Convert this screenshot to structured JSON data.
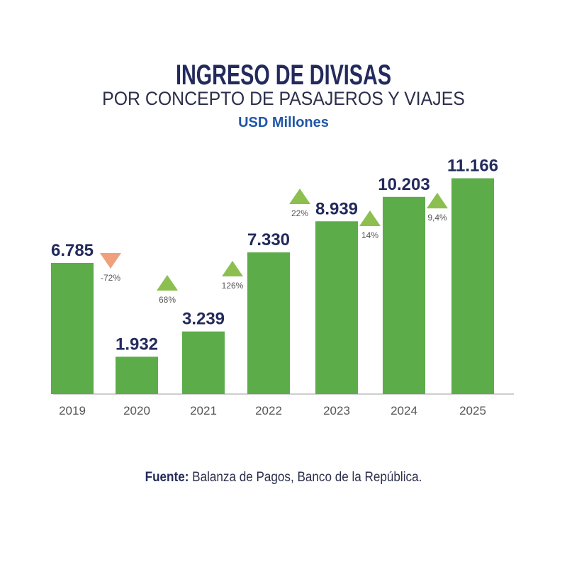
{
  "header": {
    "title": "INGRESO DE DIVISAS",
    "subtitle": "POR CONCEPTO DE PASAJEROS Y VIAJES",
    "unit": "USD Millones"
  },
  "footer": {
    "source_label": "Fuente:",
    "source_text": "Balanza de Pagos, Banco de la República."
  },
  "chart_data": {
    "type": "bar",
    "title": "INGRESO DE DIVISAS POR CONCEPTO DE PASAJEROS Y VIAJES",
    "ylabel": "USD Millones",
    "xlabel": "",
    "categories": [
      "2019",
      "2020",
      "2021",
      "2022",
      "2023",
      "2024",
      "2025"
    ],
    "values": [
      6785,
      1932,
      3239,
      7330,
      8939,
      10203,
      11166
    ],
    "value_labels": [
      "6.785",
      "1.932",
      "3.239",
      "7.330",
      "8.939",
      "10.203",
      "11.166"
    ],
    "changes": [
      {
        "label": "-72%",
        "direction": "down"
      },
      {
        "label": "68%",
        "direction": "up"
      },
      {
        "label": "126%",
        "direction": "up"
      },
      {
        "label": "22%",
        "direction": "up"
      },
      {
        "label": "14%",
        "direction": "up"
      },
      {
        "label": "9,4%",
        "direction": "up"
      }
    ],
    "ylim": [
      0,
      12000
    ],
    "grid": false,
    "colors": {
      "bar": "#5dac4a",
      "up": "#8cbf4f",
      "down": "#f0a07c",
      "value_text": "#232a5c",
      "axis_text": "#555555"
    }
  }
}
